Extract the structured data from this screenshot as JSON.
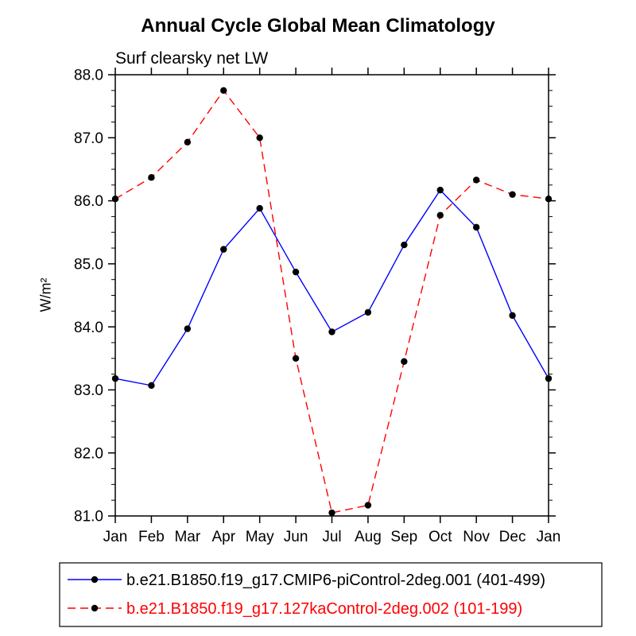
{
  "chart_data": {
    "type": "line",
    "title": "Annual Cycle Global Mean Climatology",
    "subtitle": "Surf clearsky net LW",
    "ylabel": "W/m²",
    "xlabel": "",
    "categories": [
      "Jan",
      "Feb",
      "Mar",
      "Apr",
      "May",
      "Jun",
      "Jul",
      "Aug",
      "Sep",
      "Oct",
      "Nov",
      "Dec",
      "Jan"
    ],
    "ylim": [
      81.0,
      88.0
    ],
    "ytick_interval": 1.0,
    "ytick_minor_interval": 0.25,
    "ytick_labels": [
      "81.0",
      "82.0",
      "83.0",
      "84.0",
      "85.0",
      "86.0",
      "87.0",
      "88.0"
    ],
    "grid": false,
    "axis_color": "#000000",
    "marker": {
      "shape": "circle",
      "color": "#000000"
    },
    "legend_position": "bottom",
    "series": [
      {
        "name": "b.e21.B1850.f19_g17.CMIP6-piControl-2deg.001 (401-499)",
        "color": "#0000ff",
        "dash": "solid",
        "label_color": "#000000",
        "values": [
          83.18,
          83.07,
          83.97,
          85.23,
          85.88,
          84.87,
          83.92,
          84.23,
          85.3,
          86.17,
          85.58,
          84.18,
          83.18
        ]
      },
      {
        "name": "b.e21.B1850.f19_g17.127kaControl-2deg.002 (101-199)",
        "color": "#ff0000",
        "dash": "dashed",
        "label_color": "#ff0000",
        "values": [
          86.03,
          86.37,
          86.93,
          87.75,
          87.0,
          83.5,
          81.05,
          81.17,
          83.45,
          85.77,
          86.33,
          86.1,
          86.03
        ]
      }
    ]
  }
}
